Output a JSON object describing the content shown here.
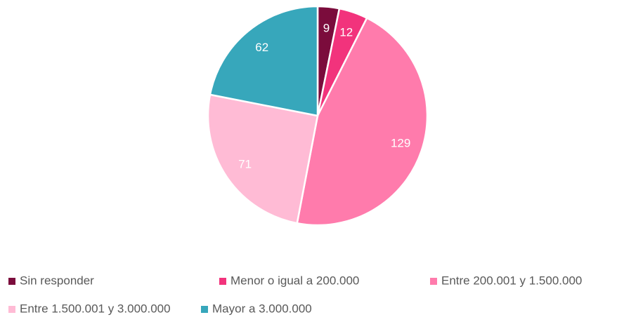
{
  "chart_data": {
    "type": "pie",
    "categories": [
      "Sin responder",
      "Menor o igual a 200.000",
      "Entre 200.001 y 1.500.000",
      "Entre 1.500.001 y 3.000.000",
      "Mayor a 3.000.000"
    ],
    "values": [
      9,
      12,
      129,
      71,
      62
    ],
    "colors": [
      "#7b0c3c",
      "#f2337c",
      "#ff7bac",
      "#ffbbd5",
      "#37a7bb"
    ],
    "legend": "bottom"
  }
}
